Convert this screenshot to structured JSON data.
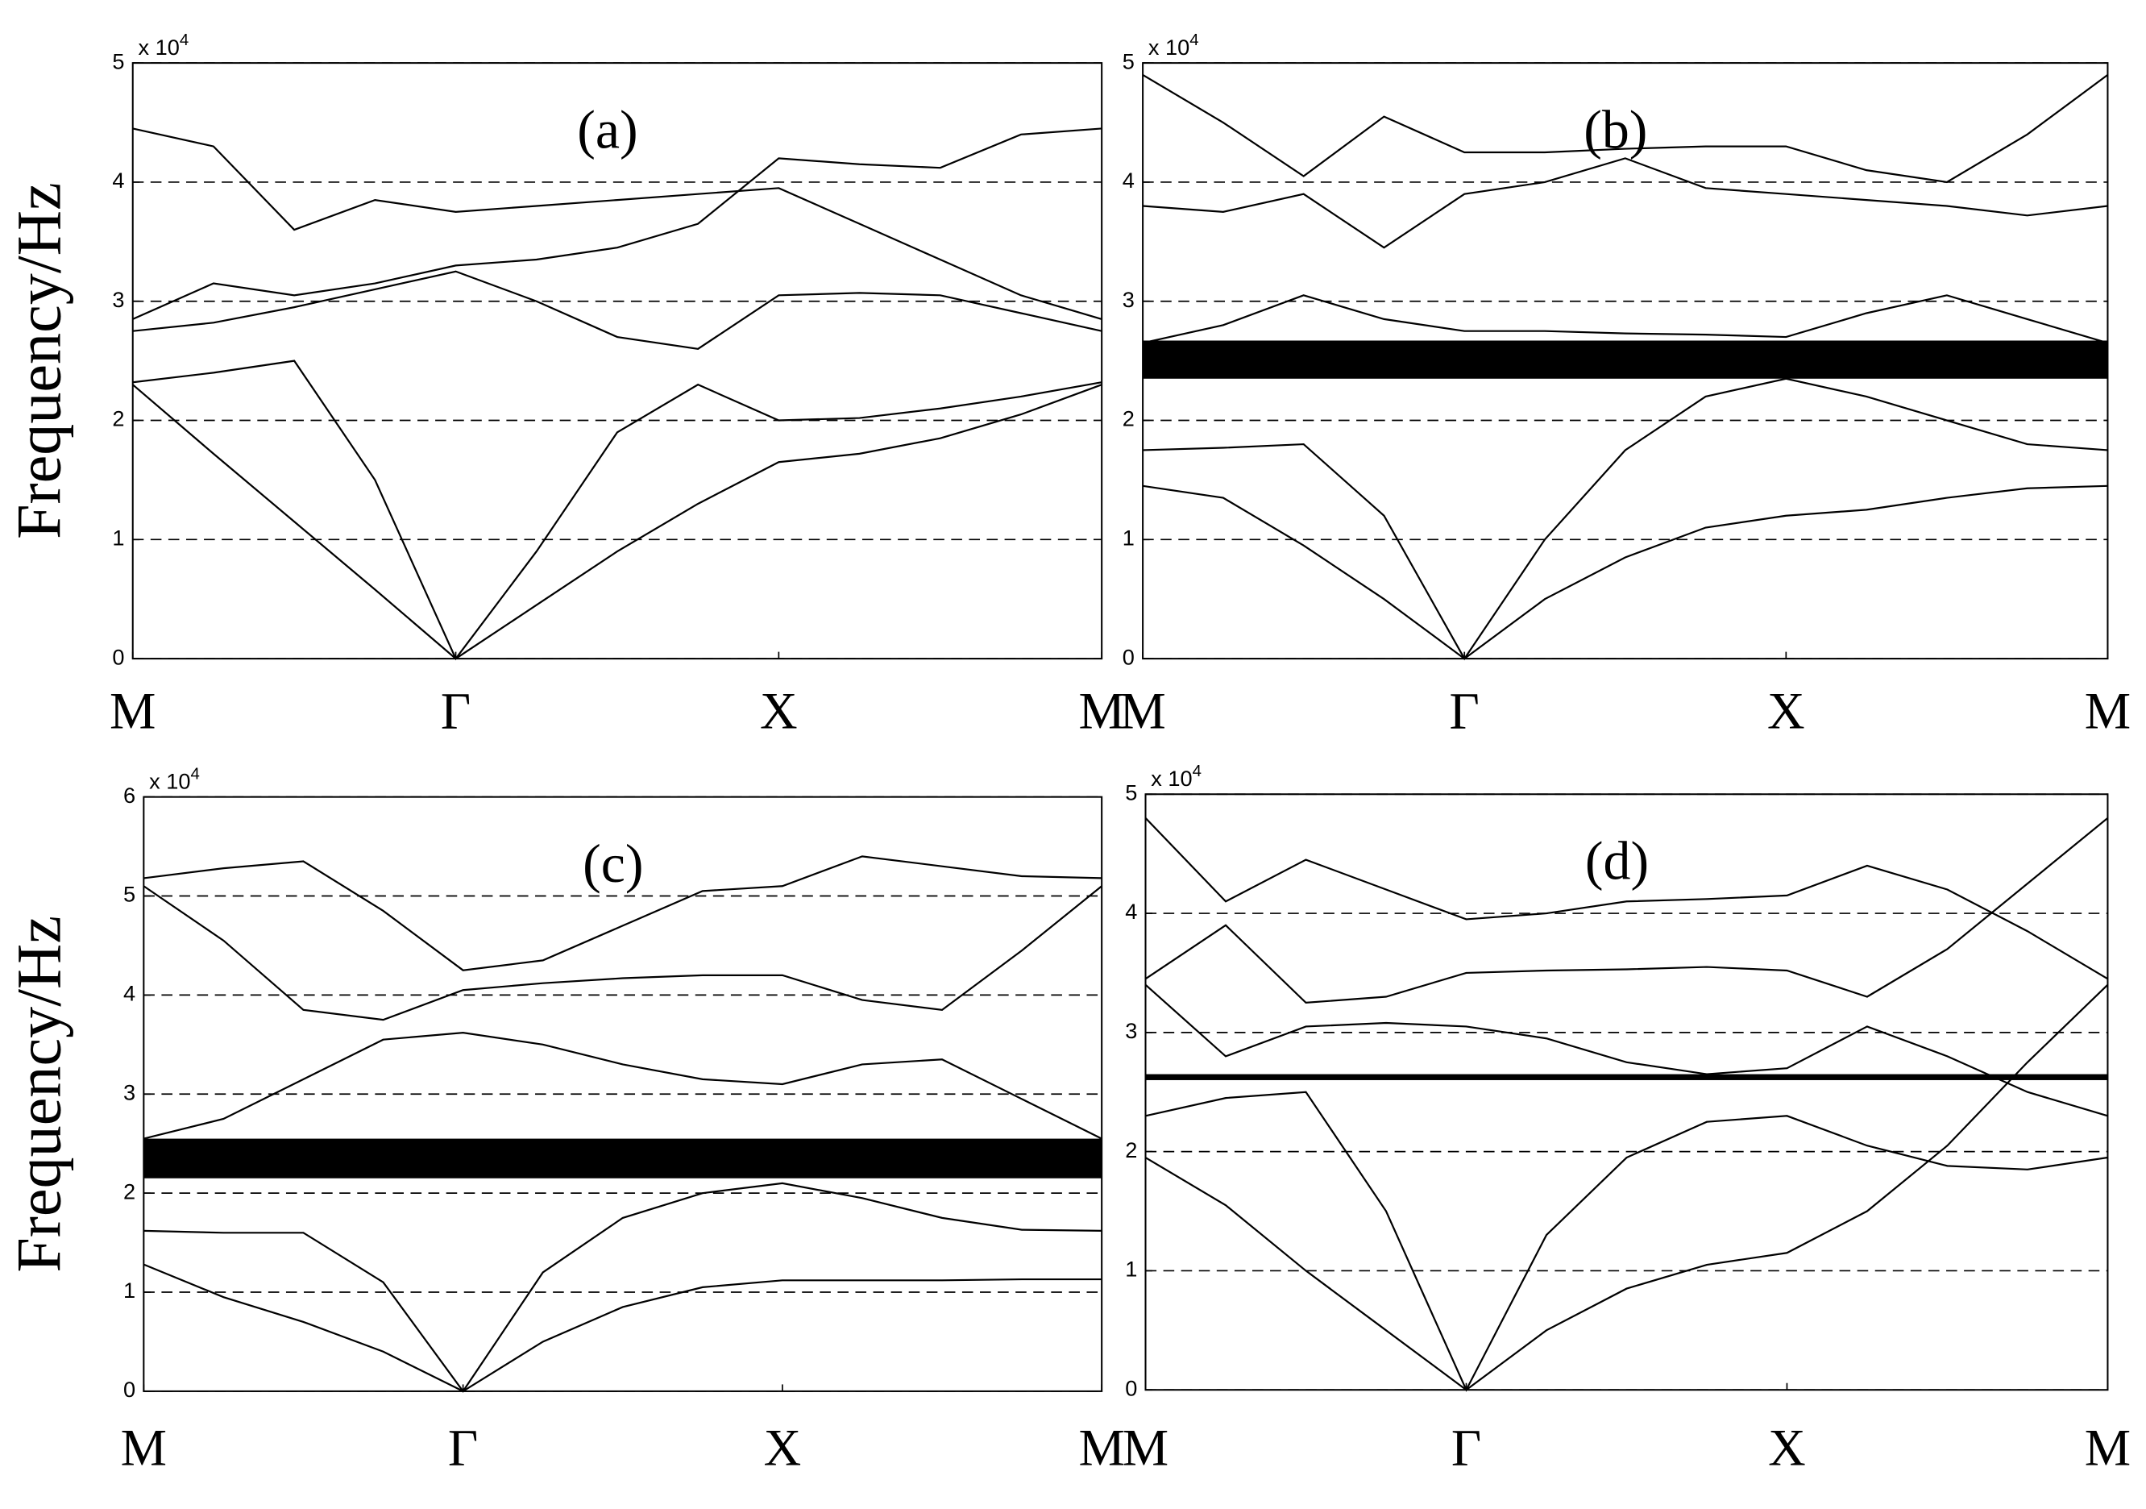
{
  "chart_data": [
    {
      "type": "line",
      "title": "(a)",
      "ylabel": "Frequency/Hz",
      "multiplier": "x 10",
      "multiplier_exponent": "4",
      "x": [
        0,
        0.25,
        0.5,
        0.75,
        1,
        1.25,
        1.5,
        1.75,
        2,
        2.25,
        2.5,
        2.75,
        3
      ],
      "xlim": [
        0,
        3
      ],
      "xticks": [
        {
          "value": 0,
          "label": "M"
        },
        {
          "value": 1,
          "label": "Γ"
        },
        {
          "value": 2,
          "label": "X"
        },
        {
          "value": 3,
          "label": "M"
        }
      ],
      "ylim": [
        0,
        5
      ],
      "yticks": [
        0,
        1,
        2,
        3,
        4,
        5
      ],
      "grid": true,
      "color": "#000000",
      "series": [
        {
          "values": [
            2.3,
            1.72,
            1.15,
            0.58,
            0,
            0.45,
            0.9,
            1.3,
            1.65,
            1.72,
            1.85,
            2.05,
            2.3
          ]
        },
        {
          "values": [
            2.32,
            2.4,
            2.5,
            1.5,
            0,
            0.9,
            1.9,
            2.3,
            2.0,
            2.02,
            2.1,
            2.2,
            2.32
          ]
        },
        {
          "values": [
            2.75,
            2.82,
            2.95,
            3.1,
            3.25,
            3.0,
            2.7,
            2.6,
            3.05,
            3.07,
            3.05,
            2.9,
            2.75
          ]
        },
        {
          "values": [
            2.85,
            3.15,
            3.05,
            3.15,
            3.3,
            3.35,
            3.45,
            3.65,
            4.2,
            4.15,
            4.12,
            4.4,
            4.45
          ]
        },
        {
          "values": [
            4.45,
            4.3,
            3.6,
            3.85,
            3.75,
            3.8,
            3.85,
            3.9,
            3.95,
            3.65,
            3.35,
            3.05,
            2.85
          ]
        }
      ]
    },
    {
      "type": "line",
      "title": "(b)",
      "multiplier": "x 10",
      "multiplier_exponent": "4",
      "x": [
        0,
        0.25,
        0.5,
        0.75,
        1,
        1.25,
        1.5,
        1.75,
        2,
        2.25,
        2.5,
        2.75,
        3
      ],
      "xlim": [
        0,
        3
      ],
      "xticks": [
        {
          "value": 0,
          "label": "M"
        },
        {
          "value": 1,
          "label": "Γ"
        },
        {
          "value": 2,
          "label": "X"
        },
        {
          "value": 3,
          "label": "M"
        }
      ],
      "ylim": [
        0,
        5
      ],
      "yticks": [
        0,
        1,
        2,
        3,
        4,
        5
      ],
      "grid": true,
      "color": "#000000",
      "band_gap": [
        2.35,
        2.67
      ],
      "series": [
        {
          "values": [
            1.45,
            1.35,
            0.95,
            0.5,
            0,
            0.5,
            0.85,
            1.1,
            1.2,
            1.25,
            1.35,
            1.43,
            1.45
          ]
        },
        {
          "values": [
            1.75,
            1.77,
            1.8,
            1.2,
            0,
            1.0,
            1.75,
            2.2,
            2.35,
            2.2,
            2.0,
            1.8,
            1.75
          ]
        },
        {
          "values": [
            2.65,
            2.8,
            3.05,
            2.85,
            2.75,
            2.75,
            2.73,
            2.72,
            2.7,
            2.9,
            3.05,
            2.85,
            2.65
          ]
        },
        {
          "values": [
            3.8,
            3.75,
            3.9,
            3.45,
            3.9,
            4.0,
            4.2,
            3.95,
            3.9,
            3.85,
            3.8,
            3.72,
            3.8
          ]
        },
        {
          "values": [
            4.9,
            4.5,
            4.05,
            4.55,
            4.25,
            4.25,
            4.28,
            4.3,
            4.3,
            4.1,
            4.0,
            4.4,
            4.9
          ]
        }
      ]
    },
    {
      "type": "line",
      "title": "(c)",
      "ylabel": "Frequency/Hz",
      "multiplier": "x 10",
      "multiplier_exponent": "4",
      "x": [
        0,
        0.25,
        0.5,
        0.75,
        1,
        1.25,
        1.5,
        1.75,
        2,
        2.25,
        2.5,
        2.75,
        3
      ],
      "xlim": [
        0,
        3
      ],
      "xticks": [
        {
          "value": 0,
          "label": "M"
        },
        {
          "value": 1,
          "label": "Γ"
        },
        {
          "value": 2,
          "label": "X"
        },
        {
          "value": 3,
          "label": "M"
        }
      ],
      "ylim": [
        0,
        6
      ],
      "yticks": [
        0,
        1,
        2,
        3,
        4,
        5,
        6
      ],
      "grid": true,
      "color": "#000000",
      "band_gap": [
        2.15,
        2.55
      ],
      "series": [
        {
          "values": [
            1.28,
            0.95,
            0.7,
            0.4,
            0,
            0.5,
            0.85,
            1.05,
            1.12,
            1.12,
            1.12,
            1.13,
            1.13
          ]
        },
        {
          "values": [
            1.62,
            1.6,
            1.6,
            1.1,
            0,
            1.2,
            1.75,
            2.0,
            2.1,
            1.95,
            1.75,
            1.63,
            1.62
          ]
        },
        {
          "values": [
            2.55,
            2.75,
            3.15,
            3.55,
            3.62,
            3.5,
            3.3,
            3.15,
            3.1,
            3.3,
            3.35,
            2.95,
            2.55
          ]
        },
        {
          "values": [
            5.1,
            4.55,
            3.85,
            3.75,
            4.05,
            4.12,
            4.17,
            4.2,
            4.2,
            3.95,
            3.85,
            4.45,
            5.1
          ]
        },
        {
          "values": [
            5.18,
            5.28,
            5.35,
            4.85,
            4.25,
            4.35,
            4.7,
            5.05,
            5.1,
            5.4,
            5.3,
            5.2,
            5.18
          ]
        }
      ]
    },
    {
      "type": "line",
      "title": "(d)",
      "multiplier": "x 10",
      "multiplier_exponent": "4",
      "x": [
        0,
        0.25,
        0.5,
        0.75,
        1,
        1.25,
        1.5,
        1.75,
        2,
        2.25,
        2.5,
        2.75,
        3
      ],
      "xlim": [
        0,
        3
      ],
      "xticks": [
        {
          "value": 0,
          "label": "M"
        },
        {
          "value": 1,
          "label": "Γ"
        },
        {
          "value": 2,
          "label": "X"
        },
        {
          "value": 3,
          "label": "M"
        }
      ],
      "ylim": [
        0,
        5
      ],
      "yticks": [
        0,
        1,
        2,
        3,
        4,
        5
      ],
      "grid": true,
      "color": "#000000",
      "band_gap": [
        2.6,
        2.65
      ],
      "series": [
        {
          "values": [
            1.95,
            1.55,
            1.0,
            0.5,
            0,
            0.5,
            0.85,
            1.05,
            1.15,
            1.5,
            2.05,
            2.75,
            3.4
          ]
        },
        {
          "values": [
            2.3,
            2.45,
            2.5,
            1.5,
            0,
            1.3,
            1.95,
            2.25,
            2.3,
            2.05,
            1.88,
            1.85,
            1.95
          ]
        },
        {
          "values": [
            3.4,
            2.8,
            3.05,
            3.08,
            3.05,
            2.95,
            2.75,
            2.65,
            2.7,
            3.05,
            2.8,
            2.5,
            2.3
          ]
        },
        {
          "values": [
            3.45,
            3.9,
            3.25,
            3.3,
            3.5,
            3.52,
            3.53,
            3.55,
            3.52,
            3.3,
            3.7,
            4.25,
            4.8
          ]
        },
        {
          "values": [
            4.8,
            4.1,
            4.45,
            4.2,
            3.95,
            4.0,
            4.1,
            4.12,
            4.15,
            4.4,
            4.2,
            3.85,
            3.45
          ]
        }
      ]
    }
  ]
}
